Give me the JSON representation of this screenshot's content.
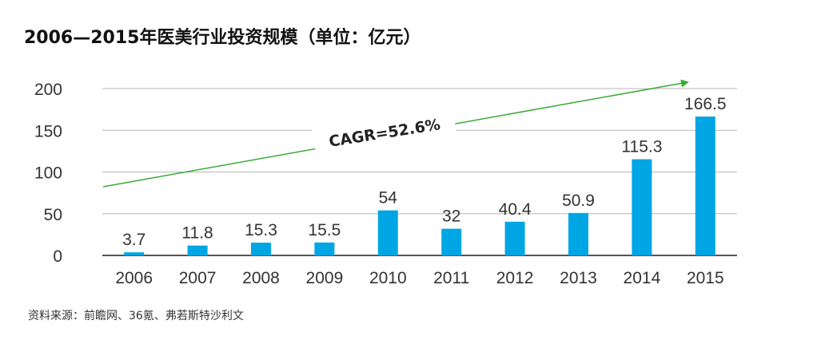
{
  "chart_data": {
    "type": "bar",
    "title": "2006—2015年医美行业投资规模（单位：亿元）",
    "categories": [
      "2006",
      "2007",
      "2008",
      "2009",
      "2010",
      "2011",
      "2012",
      "2013",
      "2014",
      "2015"
    ],
    "values": [
      3.7,
      11.8,
      15.3,
      15.5,
      54,
      32,
      40.4,
      50.9,
      115.3,
      166.5
    ],
    "value_labels": [
      "3.7",
      "11.8",
      "15.3",
      "15.5",
      "54",
      "32",
      "40.4",
      "50.9",
      "115.3",
      "166.5"
    ],
    "yticks": [
      "0",
      "50",
      "100",
      "150",
      "200"
    ],
    "ylim": [
      0,
      200
    ],
    "xlabel": "",
    "ylabel": "",
    "grid": true,
    "bar_color": "#00a6e3",
    "grid_color": "#b7b7b7",
    "axis_color": "#555555",
    "trend_color": "#3aaa35",
    "annotation": "CAGR=52.6%",
    "source": "资料来源：前瞻网、36氪、弗若斯特沙利文"
  }
}
